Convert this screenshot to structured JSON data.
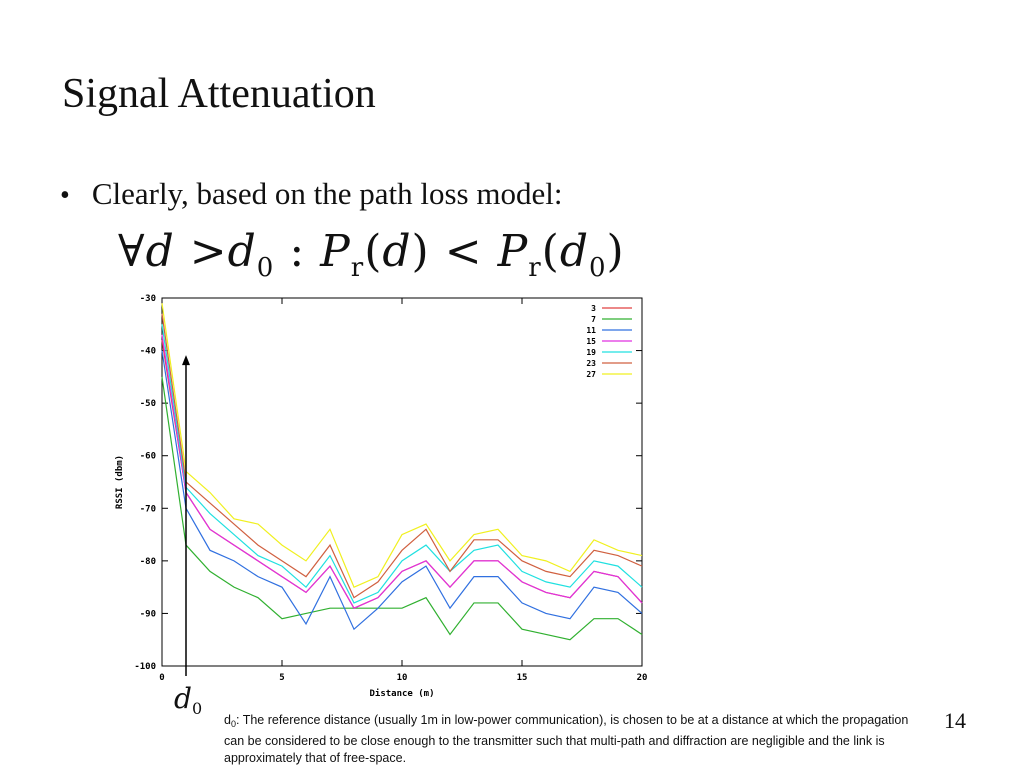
{
  "slide": {
    "title": "Signal Attenuation",
    "bullet": "Clearly, based on the path loss model:",
    "formula": {
      "forall": "∀",
      "d": "d",
      "gt": ">",
      "d0_base": "d",
      "d0_sub": "0",
      "colon": ":",
      "P": "P",
      "r": "r",
      "lparen": "(",
      "rparen": ")",
      "lt": "<"
    },
    "d0_label": {
      "base": "d",
      "sub": "0"
    },
    "footnote": {
      "prefix_base": "d",
      "prefix_sub": "0",
      "text": ": The reference distance (usually 1m in low-power communication), is chosen to be at a distance at which the propagation can be considered to be close enough to the transmitter such that multi-path and diffraction are negligible and the link is approximately that of free-space."
    },
    "page_number": "14"
  },
  "chart_data": {
    "type": "line",
    "xlabel": "Distance (m)",
    "ylabel": "RSSI (dbm)",
    "xlim": [
      0,
      20
    ],
    "ylim": [
      -100,
      -30
    ],
    "xticks": [
      0,
      5,
      10,
      15,
      20
    ],
    "yticks": [
      -30,
      -40,
      -50,
      -60,
      -70,
      -80,
      -90,
      -100
    ],
    "legend_position": "top-right",
    "grid": false,
    "x": [
      0,
      1,
      2,
      3,
      4,
      5,
      6,
      7,
      8,
      9,
      10,
      11,
      12,
      13,
      14,
      15,
      16,
      17,
      18,
      19,
      20
    ],
    "series": [
      {
        "name": "3",
        "color": "#e04040",
        "values": [
          -38,
          -67,
          -74,
          -77,
          -80,
          -83,
          -86,
          -81,
          -89,
          -87,
          -82,
          -80,
          -85,
          -80,
          -80,
          -84,
          -86,
          -87,
          -82,
          -83,
          -88
        ]
      },
      {
        "name": "7",
        "color": "#30b030",
        "values": [
          -45,
          -77,
          -82,
          -85,
          -87,
          -91,
          -90,
          -89,
          -89,
          -89,
          -89,
          -87,
          -94,
          -88,
          -88,
          -93,
          -94,
          -95,
          -91,
          -91,
          -94
        ]
      },
      {
        "name": "11",
        "color": "#3070e0",
        "values": [
          -40,
          -70,
          -78,
          -80,
          -83,
          -85,
          -92,
          -83,
          -93,
          -89,
          -84,
          -81,
          -89,
          -83,
          -83,
          -88,
          -90,
          -91,
          -85,
          -86,
          -90
        ]
      },
      {
        "name": "15",
        "color": "#e030e0",
        "values": [
          -37,
          -67,
          -74,
          -77,
          -80,
          -83,
          -86,
          -81,
          -89,
          -87,
          -82,
          -80,
          -85,
          -80,
          -80,
          -84,
          -86,
          -87,
          -82,
          -83,
          -88
        ]
      },
      {
        "name": "19",
        "color": "#20e0e0",
        "values": [
          -35,
          -66,
          -71,
          -75,
          -79,
          -81,
          -85,
          -79,
          -88,
          -86,
          -80,
          -77,
          -82,
          -78,
          -77,
          -82,
          -84,
          -85,
          -80,
          -81,
          -85
        ]
      },
      {
        "name": "23",
        "color": "#d06040",
        "values": [
          -33,
          -65,
          -69,
          -73,
          -77,
          -80,
          -83,
          -77,
          -87,
          -84,
          -78,
          -74,
          -82,
          -76,
          -76,
          -80,
          -82,
          -83,
          -78,
          -79,
          -81
        ]
      },
      {
        "name": "27",
        "color": "#f0f020",
        "values": [
          -31,
          -63,
          -67,
          -72,
          -73,
          -77,
          -80,
          -74,
          -85,
          -83,
          -75,
          -73,
          -80,
          -75,
          -74,
          -79,
          -80,
          -82,
          -76,
          -78,
          -79
        ]
      }
    ]
  }
}
